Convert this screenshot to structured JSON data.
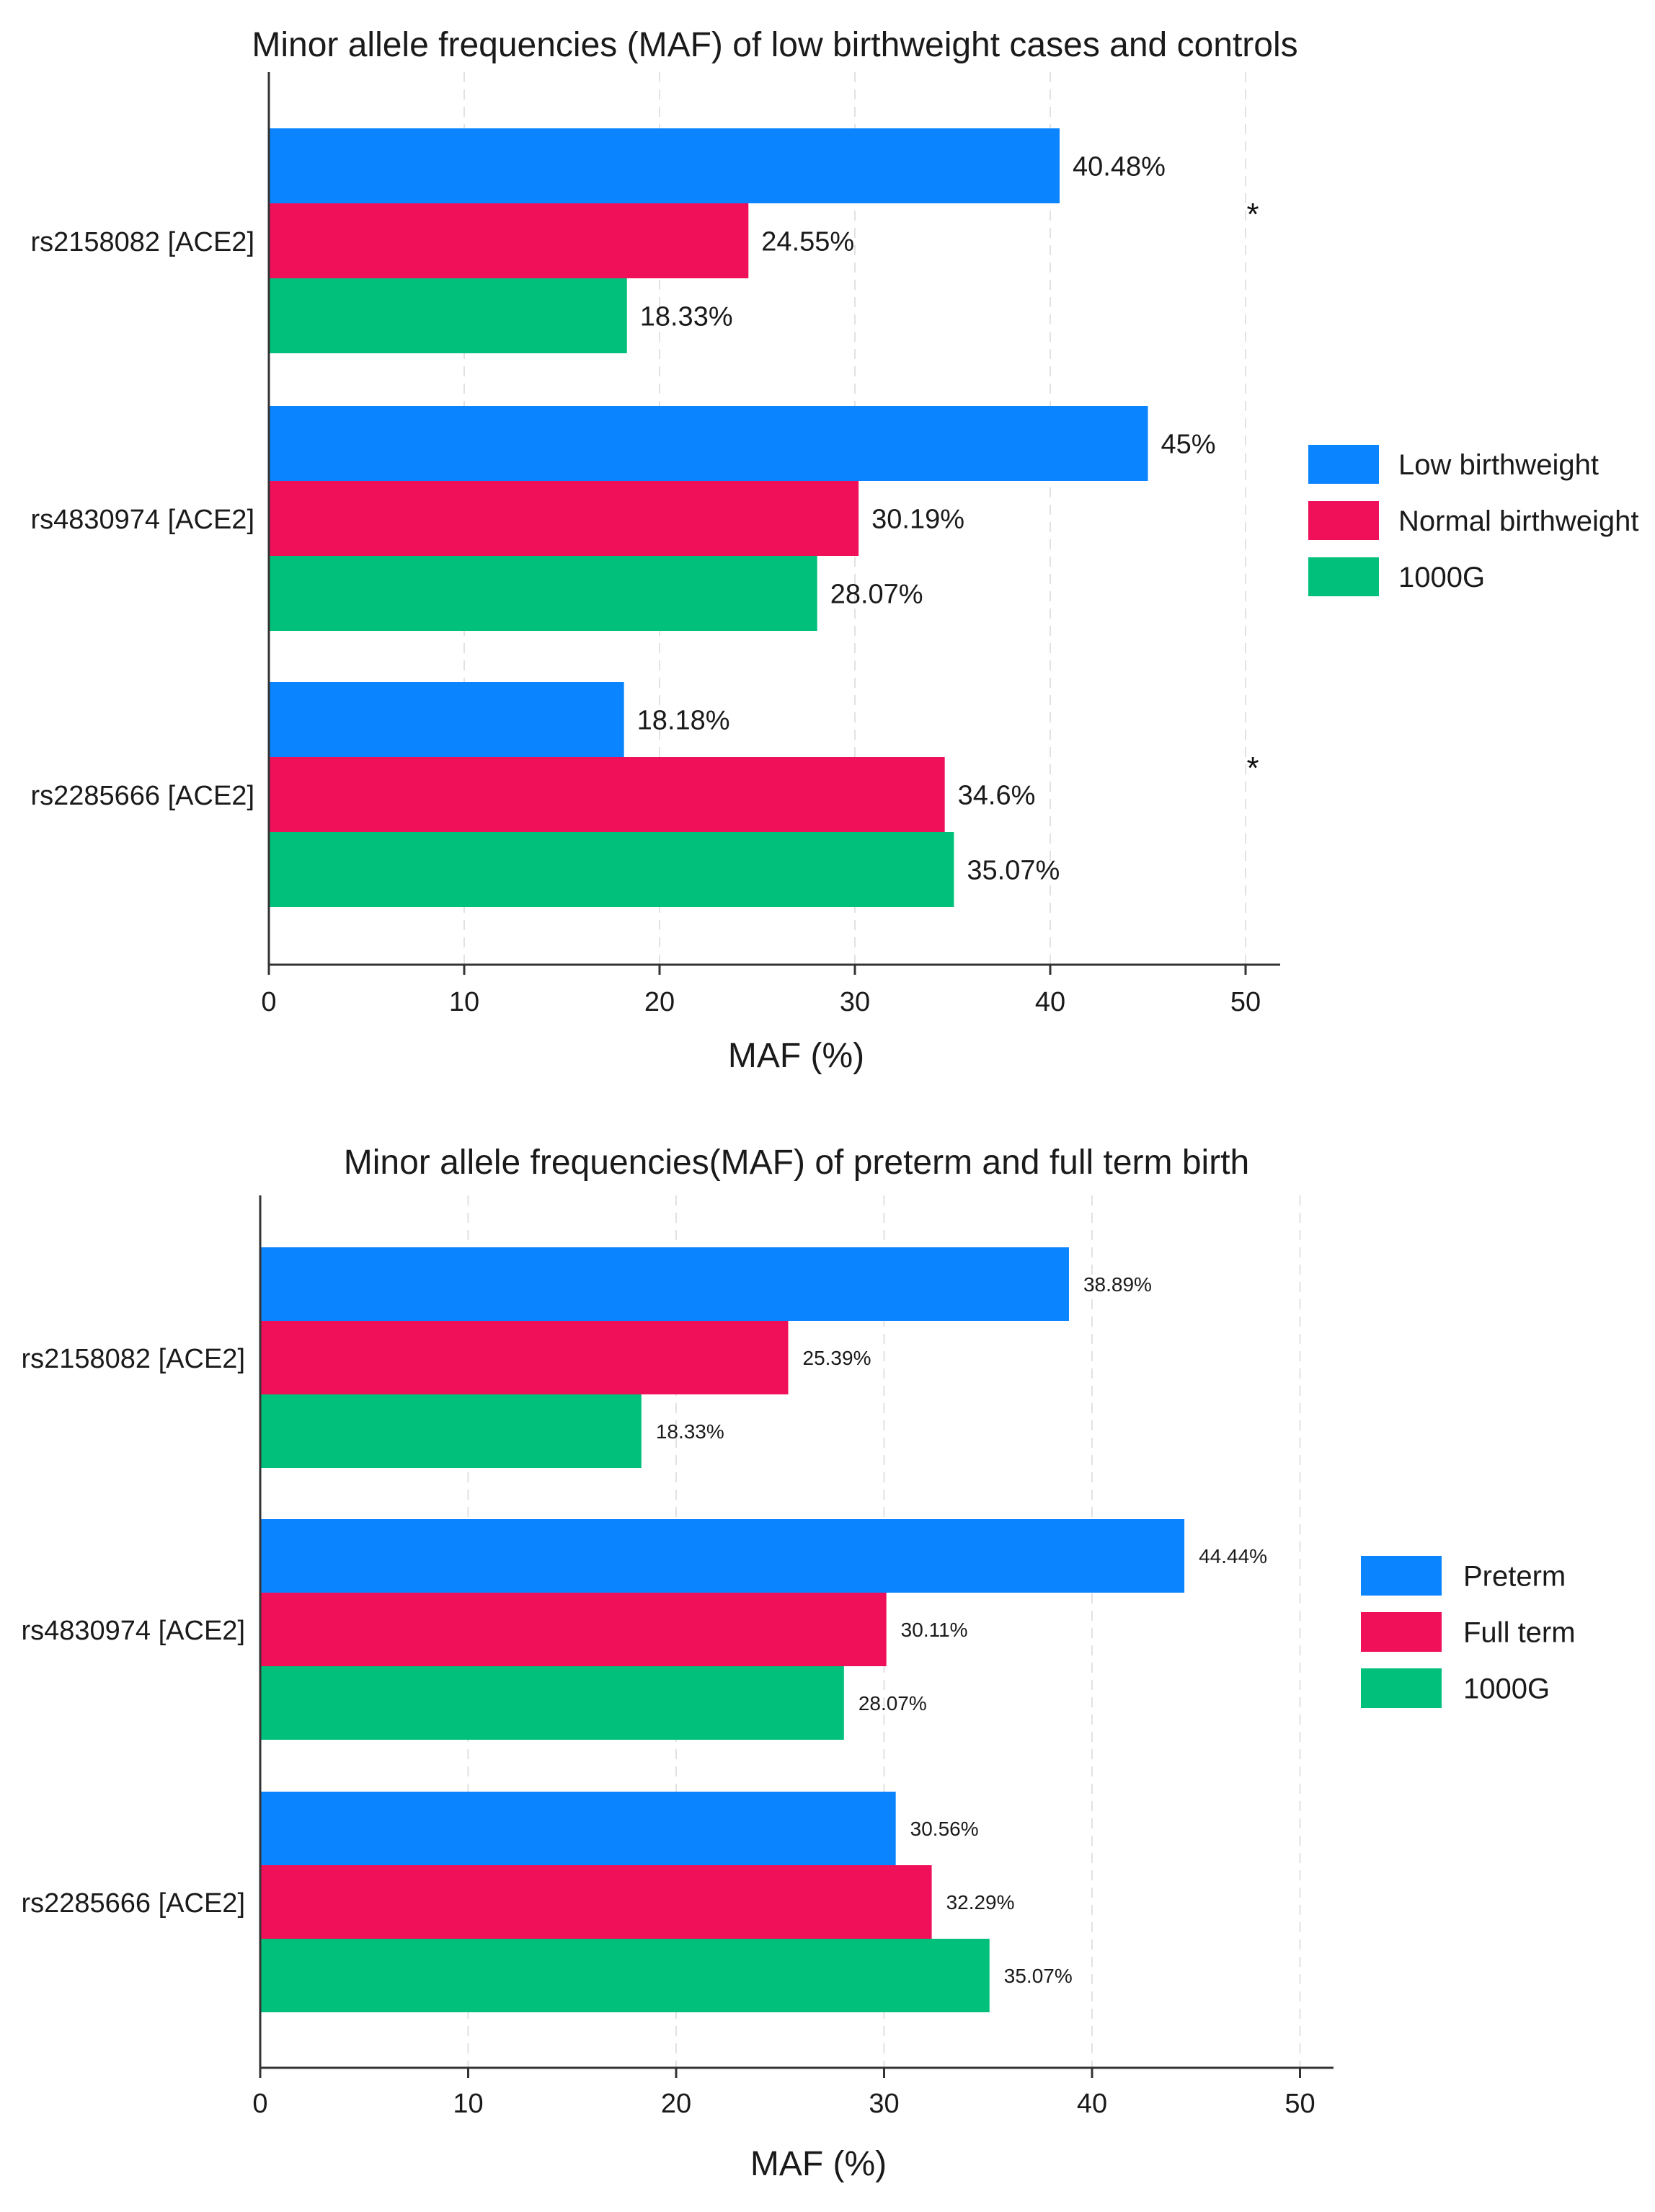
{
  "colors": {
    "series_1": "#0a84ff",
    "series_2": "#f0105a",
    "series_3": "#00c07b"
  },
  "chart_data": [
    {
      "type": "bar",
      "orientation": "horizontal",
      "title": "Minor allele frequencies (MAF) of low birthweight cases and controls",
      "xlabel": "MAF (%)",
      "ylabel": "",
      "xlim": [
        0,
        52
      ],
      "xticks": [
        0,
        10,
        20,
        30,
        40,
        50
      ],
      "grid": true,
      "legend_position": "right",
      "categories": [
        "rs2158082 [ACE2]",
        "rs4830974 [ACE2]",
        "rs2285666 [ACE2]"
      ],
      "series": [
        {
          "name": "Low birthweight",
          "values": [
            40.48,
            45,
            18.18
          ],
          "labels": [
            "40.48%",
            "45%",
            "18.18%"
          ]
        },
        {
          "name": "Normal birthweight",
          "values": [
            24.55,
            30.19,
            34.6
          ],
          "labels": [
            "24.55%",
            "30.19%",
            "34.6%"
          ]
        },
        {
          "name": "1000G",
          "values": [
            18.33,
            28.07,
            35.07
          ],
          "labels": [
            "18.33%",
            "28.07%",
            "35.07%"
          ]
        }
      ],
      "annotations": [
        {
          "text": "*",
          "category": "rs2158082 [ACE2]"
        },
        {
          "text": "*",
          "category": "rs2285666 [ACE2]"
        }
      ]
    },
    {
      "type": "bar",
      "orientation": "horizontal",
      "title": "Minor allele frequencies(MAF) of preterm and full term birth",
      "xlabel": "MAF (%)",
      "ylabel": "",
      "xlim": [
        0,
        52
      ],
      "xticks": [
        0,
        10,
        20,
        30,
        40,
        50
      ],
      "grid": true,
      "legend_position": "right",
      "categories": [
        "rs2158082 [ACE2]",
        "rs4830974 [ACE2]",
        "rs2285666 [ACE2]"
      ],
      "series": [
        {
          "name": "Preterm",
          "values": [
            38.89,
            44.44,
            30.56
          ],
          "labels": [
            "38.89%",
            "44.44%",
            "30.56%"
          ]
        },
        {
          "name": "Full term",
          "values": [
            25.39,
            30.11,
            32.29
          ],
          "labels": [
            "25.39%",
            "30.11%",
            "32.29%"
          ]
        },
        {
          "name": "1000G",
          "values": [
            18.33,
            28.07,
            35.07
          ],
          "labels": [
            "18.33%",
            "28.07%",
            "35.07%"
          ]
        }
      ],
      "annotations": []
    }
  ]
}
